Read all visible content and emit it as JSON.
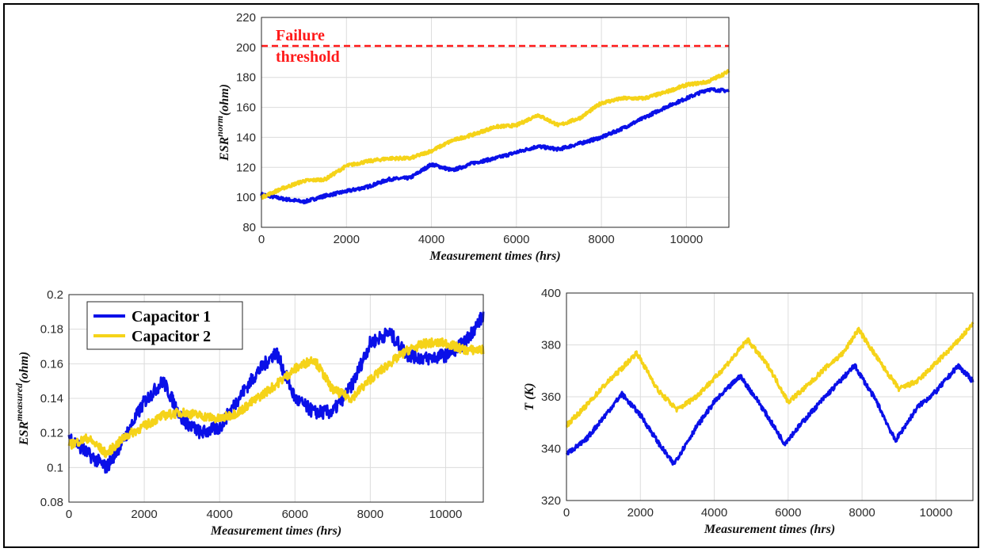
{
  "colors": {
    "capacitor1": "#0a10e8",
    "capacitor2": "#f5d319",
    "threshold": "#ff1a1a",
    "grid": "#dcdcdc"
  },
  "chart_data": [
    {
      "type": "line",
      "xlabel": "Measurement times (hrs)",
      "ylabel": "ESR",
      "ylabel_sup": "norm",
      "ylabel_unit": "(ohm)",
      "xlim": [
        0,
        11000
      ],
      "ylim": [
        80,
        220
      ],
      "xticks": [
        0,
        2000,
        4000,
        6000,
        8000,
        10000
      ],
      "yticks": [
        80,
        100,
        120,
        140,
        160,
        180,
        200,
        220
      ],
      "grid": true,
      "threshold": {
        "value": 201,
        "label_line1": "Failure",
        "label_line2": "threshold"
      },
      "series": [
        {
          "key": "capacitor1",
          "values_x": [
            0,
            500,
            1000,
            1500,
            2000,
            2500,
            3000,
            3500,
            4000,
            4500,
            5000,
            5500,
            6000,
            6500,
            7000,
            7500,
            8000,
            8500,
            9000,
            9500,
            10000,
            10500,
            11000
          ],
          "values_y": [
            102,
            99,
            97,
            101,
            104,
            107,
            112,
            113,
            122,
            118,
            123,
            126,
            130,
            134,
            132,
            136,
            140,
            146,
            153,
            160,
            166,
            172,
            171
          ]
        },
        {
          "key": "capacitor2",
          "values_x": [
            0,
            500,
            1000,
            1500,
            2000,
            2500,
            3000,
            3500,
            4000,
            4500,
            5000,
            5500,
            6000,
            6500,
            7000,
            7500,
            8000,
            8500,
            9000,
            9500,
            10000,
            10500,
            11000
          ],
          "values_y": [
            100,
            106,
            111,
            112,
            121,
            124,
            126,
            126,
            131,
            138,
            142,
            147,
            148,
            155,
            148,
            153,
            163,
            166,
            166,
            170,
            175,
            177,
            184
          ]
        }
      ]
    },
    {
      "type": "line",
      "xlabel": "Measurement times (hrs)",
      "ylabel": "ESR",
      "ylabel_sup": "measured",
      "ylabel_unit": "(ohm)",
      "xlim": [
        0,
        11000
      ],
      "ylim": [
        0.08,
        0.2
      ],
      "xticks": [
        0,
        2000,
        4000,
        6000,
        8000,
        10000
      ],
      "yticks": [
        0.08,
        0.1,
        0.12,
        0.14,
        0.16,
        0.18,
        0.2
      ],
      "grid": true,
      "legend": {
        "placement": "top-left",
        "entries": [
          "Capacitor 1",
          "Capacitor 2"
        ]
      },
      "series": [
        {
          "name": "Capacitor 1",
          "key": "capacitor1",
          "values_x": [
            0,
            500,
            1000,
            1500,
            2000,
            2500,
            3000,
            3500,
            4000,
            4500,
            5000,
            5500,
            6000,
            6500,
            7000,
            7500,
            8000,
            8500,
            9000,
            9500,
            10000,
            10500,
            11000
          ],
          "values_y": [
            0.118,
            0.108,
            0.1,
            0.118,
            0.138,
            0.15,
            0.128,
            0.12,
            0.123,
            0.14,
            0.155,
            0.167,
            0.14,
            0.132,
            0.132,
            0.147,
            0.172,
            0.178,
            0.165,
            0.163,
            0.165,
            0.172,
            0.188
          ]
        },
        {
          "name": "Capacitor 2",
          "key": "capacitor2",
          "values_x": [
            0,
            500,
            1000,
            1500,
            2000,
            2500,
            3000,
            3500,
            4000,
            4500,
            5000,
            5500,
            6000,
            6500,
            7000,
            7500,
            8000,
            8500,
            9000,
            9500,
            10000,
            10500,
            11000
          ],
          "values_y": [
            0.113,
            0.117,
            0.108,
            0.118,
            0.124,
            0.13,
            0.132,
            0.13,
            0.128,
            0.132,
            0.14,
            0.148,
            0.157,
            0.163,
            0.145,
            0.14,
            0.151,
            0.16,
            0.168,
            0.172,
            0.172,
            0.168,
            0.168
          ]
        }
      ]
    },
    {
      "type": "line",
      "xlabel": "Measurement times (hrs)",
      "ylabel": "T (K)",
      "xlim": [
        0,
        11000
      ],
      "ylim": [
        320,
        400
      ],
      "xticks": [
        0,
        2000,
        4000,
        6000,
        8000,
        10000
      ],
      "yticks": [
        320,
        340,
        360,
        380,
        400
      ],
      "grid": true,
      "series": [
        {
          "key": "capacitor1",
          "values_x": [
            0,
            500,
            1000,
            1500,
            2000,
            2500,
            2900,
            3500,
            4000,
            4700,
            5200,
            5900,
            6500,
            7000,
            7800,
            8400,
            8900,
            9500,
            10000,
            10600,
            11000
          ],
          "values_y": [
            338,
            343,
            352,
            361,
            353,
            342,
            334,
            348,
            358,
            368,
            358,
            342,
            352,
            360,
            372,
            358,
            343,
            356,
            362,
            372,
            366
          ]
        },
        {
          "key": "capacitor2",
          "values_x": [
            0,
            500,
            1000,
            1500,
            1900,
            2500,
            3000,
            3500,
            4000,
            4500,
            4900,
            5500,
            6000,
            6500,
            7000,
            7500,
            7900,
            8500,
            9000,
            9500,
            10000,
            10500,
            11000
          ],
          "values_y": [
            349,
            356,
            364,
            371,
            377,
            362,
            355,
            360,
            367,
            375,
            382,
            371,
            358,
            364,
            371,
            377,
            386,
            373,
            363,
            366,
            373,
            380,
            388
          ]
        }
      ]
    }
  ]
}
